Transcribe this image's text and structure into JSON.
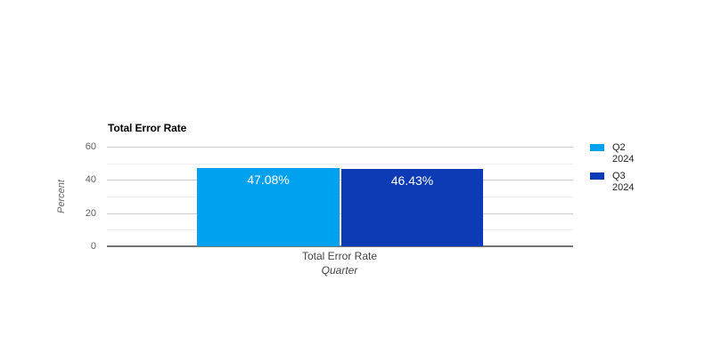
{
  "chart": {
    "title": "Total Error Rate",
    "y_axis_title": "Percent",
    "x_axis_title": "Quarter",
    "category_label": "Total Error Rate"
  },
  "chart_data": {
    "type": "bar",
    "title": "Total Error Rate",
    "xlabel": "Quarter",
    "ylabel": "Percent",
    "categories": [
      "Total Error Rate"
    ],
    "series": [
      {
        "name": "Q2 2024",
        "values": [
          47.08
        ],
        "label": "47.08%",
        "color": "#00A1EE"
      },
      {
        "name": "Q3 2024",
        "values": [
          46.43
        ],
        "label": "46.43%",
        "color": "#0D3BB5"
      }
    ],
    "ylim": [
      0,
      60
    ],
    "y_major_ticks": [
      0,
      20,
      40,
      60
    ],
    "y_minor_ticks": [
      10,
      30,
      50
    ],
    "grid": true,
    "legend_position": "right"
  },
  "axis": {
    "y_ticks": [
      "0",
      "20",
      "40",
      "60"
    ]
  },
  "legend": {
    "entries": [
      {
        "line1": "Q2",
        "line2": "2024",
        "color": "#00A1EE"
      },
      {
        "line1": "Q3",
        "line2": "2024",
        "color": "#0D3BB5"
      }
    ]
  },
  "colors": {
    "background": "#ffffff",
    "major_gridline": "#cccccc",
    "minor_gridline": "#eeeeee",
    "baseline": "#757575",
    "tick_label": "#616161",
    "bar_label_text": "#ffffff"
  }
}
